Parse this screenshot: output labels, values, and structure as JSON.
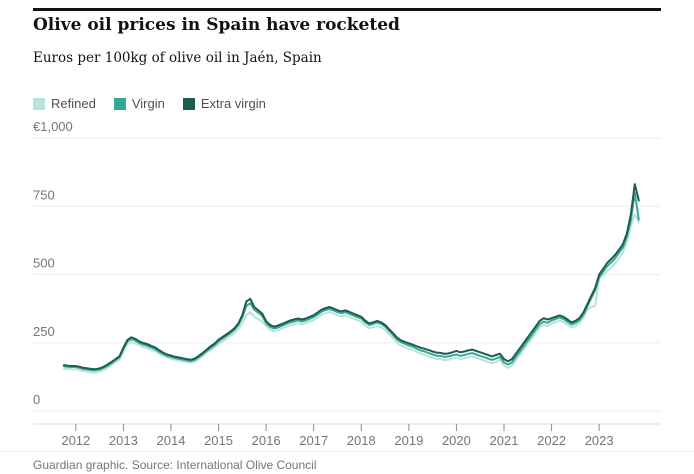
{
  "header": {
    "title": "Olive oil prices in Spain have rocketed",
    "subtitle": "Euros per 100kg of olive oil in Jaén, Spain"
  },
  "legend": [
    {
      "label": "Refined",
      "color": "#b8e3da"
    },
    {
      "label": "Virgin",
      "color": "#3aa896"
    },
    {
      "label": "Extra virgin",
      "color": "#1b5e50"
    }
  ],
  "footer": {
    "credit": "Guardian graphic. Source: International Olive Council"
  },
  "chart_data": {
    "type": "line",
    "title": "Olive oil prices in Spain have rocketed",
    "subtitle": "Euros per 100kg of olive oil in Jaén, Spain",
    "xlabel": "",
    "ylabel": "Euros per 100kg",
    "x_unit": "year (monthly values, starting Oct 2011)",
    "x_start": 2011.75,
    "x_step": 0.0833333,
    "xlim": [
      2011.1,
      2024.3
    ],
    "ylim": [
      0,
      1000
    ],
    "grid": "horizontal",
    "legend_position": "top-left",
    "xticks": [
      2012,
      2013,
      2014,
      2015,
      2016,
      2017,
      2018,
      2019,
      2020,
      2021,
      2022,
      2023
    ],
    "yticks": [
      {
        "value": 0,
        "label": "0"
      },
      {
        "value": 250,
        "label": "250"
      },
      {
        "value": 500,
        "label": "500"
      },
      {
        "value": 750,
        "label": "750"
      },
      {
        "value": 1000,
        "label": "€1,000"
      }
    ],
    "series": [
      {
        "name": "Refined",
        "color": "#b8e3da",
        "values": [
          156,
          154,
          153,
          153,
          150,
          146,
          144,
          142,
          141,
          144,
          150,
          158,
          168,
          178,
          188,
          217,
          245,
          252,
          248,
          240,
          234,
          230,
          224,
          219,
          210,
          202,
          196,
          192,
          188,
          185,
          182,
          179,
          177,
          181,
          191,
          201,
          213,
          224,
          234,
          245,
          255,
          265,
          275,
          286,
          301,
          321,
          351,
          361,
          345,
          337,
          327,
          311,
          297,
          292,
          296,
          302,
          308,
          314,
          318,
          322,
          318,
          322,
          328,
          333,
          343,
          353,
          359,
          363,
          357,
          351,
          347,
          351,
          345,
          339,
          333,
          327,
          313,
          303,
          307,
          311,
          307,
          297,
          282,
          267,
          250,
          240,
          234,
          228,
          223,
          216,
          210,
          206,
          200,
          195,
          191,
          190,
          186,
          188,
          192,
          195,
          190,
          193,
          197,
          200,
          195,
          190,
          185,
          180,
          175,
          180,
          187,
          166,
          158,
          166,
          186,
          206,
          226,
          246,
          266,
          286,
          306,
          316,
          311,
          321,
          326,
          331,
          326,
          316,
          306,
          311,
          321,
          341,
          371,
          381,
          385,
          487,
          497,
          512,
          526,
          540,
          560,
          580,
          620,
          680,
          721,
          691
        ]
      },
      {
        "name": "Virgin",
        "color": "#3aa896",
        "values": [
          164,
          162,
          161,
          161,
          158,
          154,
          152,
          150,
          149,
          152,
          158,
          166,
          176,
          186,
          196,
          227,
          255,
          264,
          258,
          249,
          243,
          239,
          233,
          227,
          217,
          209,
          202,
          198,
          194,
          191,
          188,
          185,
          183,
          187,
          197,
          208,
          220,
          231,
          241,
          255,
          265,
          275,
          285,
          297,
          315,
          343,
          385,
          395,
          371,
          360,
          348,
          322,
          308,
          302,
          306,
          312,
          318,
          324,
          328,
          332,
          328,
          332,
          338,
          344,
          354,
          364,
          370,
          374,
          368,
          362,
          358,
          362,
          356,
          350,
          344,
          339,
          325,
          315,
          319,
          324,
          319,
          309,
          294,
          279,
          262,
          252,
          246,
          240,
          235,
          228,
          222,
          218,
          212,
          207,
          203,
          202,
          198,
          200,
          204,
          207,
          202,
          205,
          209,
          212,
          207,
          202,
          197,
          192,
          187,
          192,
          198,
          178,
          170,
          178,
          198,
          218,
          238,
          258,
          278,
          298,
          318,
          328,
          323,
          332,
          337,
          342,
          337,
          327,
          317,
          322,
          332,
          352,
          383,
          413,
          443,
          490,
          510,
          530,
          544,
          559,
          579,
          599,
          639,
          699,
          799,
          701
        ]
      },
      {
        "name": "Extra virgin",
        "color": "#1b5e50",
        "values": [
          168,
          166,
          165,
          165,
          162,
          158,
          156,
          154,
          153,
          156,
          162,
          170,
          180,
          190,
          200,
          232,
          260,
          270,
          264,
          255,
          249,
          245,
          239,
          233,
          223,
          214,
          207,
          203,
          199,
          196,
          193,
          190,
          188,
          192,
          202,
          213,
          225,
          237,
          247,
          261,
          271,
          281,
          291,
          303,
          321,
          351,
          401,
          411,
          381,
          369,
          357,
          329,
          315,
          309,
          313,
          319,
          325,
          331,
          335,
          339,
          335,
          339,
          345,
          351,
          361,
          371,
          377,
          381,
          375,
          369,
          365,
          369,
          363,
          357,
          351,
          345,
          331,
          321,
          325,
          330,
          325,
          315,
          300,
          285,
          269,
          259,
          253,
          248,
          243,
          237,
          232,
          228,
          223,
          218,
          214,
          213,
          209,
          211,
          215,
          220,
          215,
          218,
          222,
          225,
          220,
          215,
          210,
          205,
          200,
          205,
          210,
          190,
          182,
          190,
          210,
          230,
          250,
          270,
          290,
          310,
          330,
          340,
          335,
          340,
          345,
          350,
          345,
          335,
          325,
          330,
          340,
          360,
          391,
          421,
          451,
          500,
          520,
          542,
          556,
          571,
          591,
          611,
          651,
          721,
          831,
          771
        ]
      }
    ]
  }
}
